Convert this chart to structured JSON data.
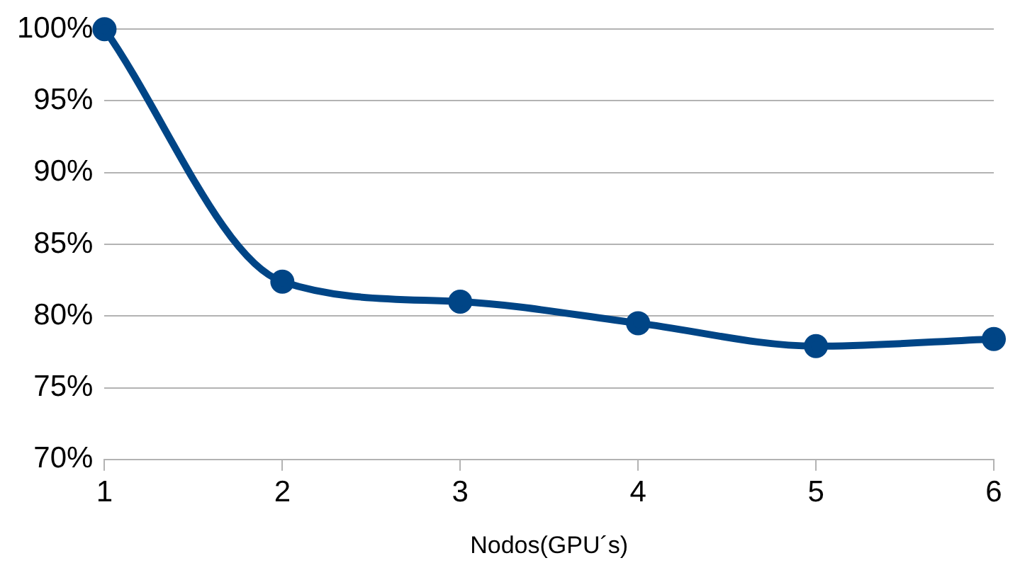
{
  "chart_data": {
    "type": "line",
    "xlabel": "Nodos(GPU´s)",
    "x": [
      1,
      2,
      3,
      4,
      5,
      6
    ],
    "series": [
      {
        "color": "#004586",
        "values": [
          100,
          82.4,
          81.0,
          79.5,
          77.9,
          78.4
        ]
      }
    ],
    "xlim": [
      1,
      6
    ],
    "xticks": [
      1,
      2,
      3,
      4,
      5,
      6
    ],
    "ylim": [
      70,
      100
    ],
    "yticks": [
      {
        "value": 70,
        "label": "70%"
      },
      {
        "value": 75,
        "label": "75%"
      },
      {
        "value": 80,
        "label": "80%"
      },
      {
        "value": 85,
        "label": "85%"
      },
      {
        "value": 90,
        "label": "90%"
      },
      {
        "value": 95,
        "label": "95%"
      },
      {
        "value": 100,
        "label": "100%"
      }
    ],
    "grid": "y",
    "legend": false,
    "marker": "circle",
    "line_style": "solid"
  }
}
